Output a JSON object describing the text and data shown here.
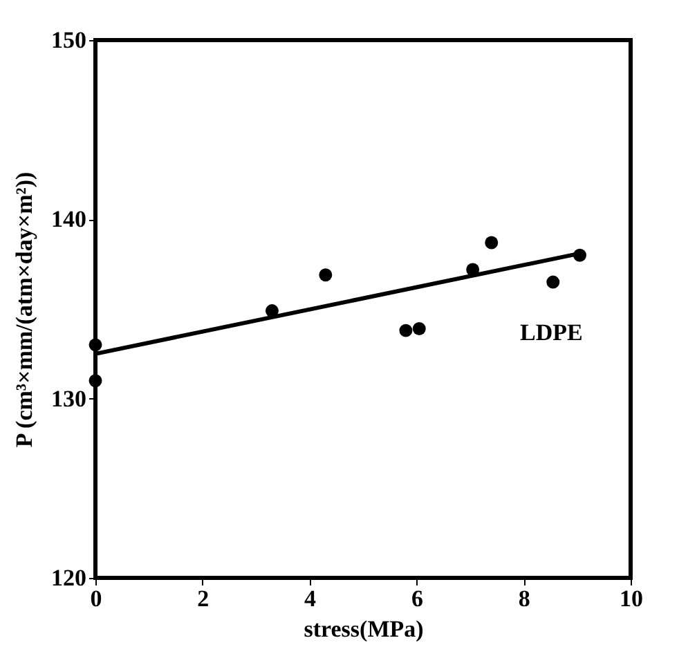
{
  "chart_data": {
    "type": "scatter",
    "xlabel": "stress(MPa)",
    "ylabel": "P (cm³×mm/(atm×day×m²))",
    "xlim": [
      0,
      10
    ],
    "xticks": [
      0,
      2,
      4,
      6,
      8,
      10
    ],
    "ylim": [
      120,
      150
    ],
    "yticks": [
      120,
      130,
      140,
      150
    ],
    "grid": false,
    "marker": "circle",
    "series": [
      {
        "color": "#000000",
        "x": [
          0,
          0,
          3.3,
          4.3,
          5.8,
          6.05,
          7.05,
          7.4,
          8.55,
          9.05
        ],
        "values": [
          133.0,
          131.0,
          134.9,
          136.9,
          133.8,
          133.9,
          137.2,
          138.7,
          136.5,
          138.0
        ]
      },
      {
        "type": "line",
        "marker": "none",
        "color": "#000000",
        "x": [
          0,
          9.05
        ],
        "values": [
          132.5,
          138.1
        ]
      }
    ],
    "annotations": [
      "LDPE"
    ]
  }
}
